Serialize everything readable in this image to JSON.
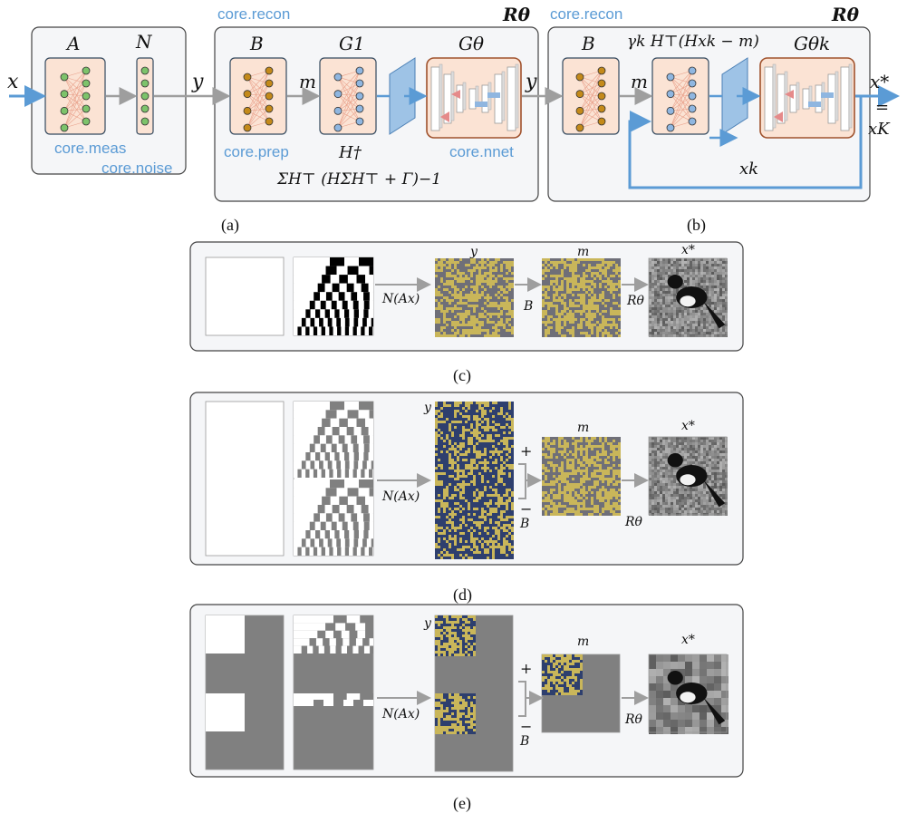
{
  "colors": {
    "accent_blue": "#5b9bd5",
    "arrow_gray": "#9e9e9e",
    "module_fill": "#fbe3d4",
    "panel_bg": "#f5f6f8",
    "noise_yellow": "#c9b65a",
    "noise_navy": "#2e3f6e",
    "masked_gray": "#808080"
  },
  "icons": [
    "network-icon",
    "unet-icon",
    "arrow-icon",
    "projection-icon",
    "bracket-icon"
  ],
  "top": {
    "input_x": "x",
    "y_between_1": "y",
    "y_between_2": "y",
    "m_1": "m",
    "m_2": "m",
    "output_x": "x*",
    "output_eq": "=",
    "output_xK": "xK",
    "xk_feedback": "xk",
    "meas": {
      "op": "A",
      "label": "core.meas"
    },
    "noise": {
      "op": "N",
      "label": "core.noise"
    },
    "recon1": {
      "title": "core.recon",
      "R": "Rθ",
      "B": "B",
      "prep_label": "core.prep",
      "G1": "G1",
      "Hdag": "H†",
      "Gtheta": "Gθ",
      "nnet_label": "core.nnet",
      "formula": "ΣH⊤ (HΣH⊤ + Γ)−1"
    },
    "recon2": {
      "title": "core.recon",
      "R": "Rθ",
      "B": "B",
      "grad": "γk H⊤(Hxk − m)",
      "Gthetak": "Gθk"
    }
  },
  "captions": {
    "a": "(a)",
    "b": "(b)",
    "c": "(c)",
    "d": "(d)",
    "e": "(e)"
  },
  "panel_c": {
    "y_label": "y",
    "m_label": "m",
    "xstar_label": "x*",
    "arrow1": "N(Ax)",
    "arrow2": "B",
    "arrow3": "Rθ"
  },
  "panel_d": {
    "y_label": "y",
    "m_label": "m",
    "xstar_label": "x*",
    "arrow1": "N(Ax)",
    "plus": "+",
    "minus": "−",
    "B": "B",
    "arrow3": "Rθ"
  },
  "panel_e": {
    "y_label": "y",
    "m_label": "m",
    "xstar_label": "x*",
    "arrow1": "N(Ax)",
    "plus": "+",
    "minus": "−",
    "B": "B",
    "arrow3": "Rθ"
  }
}
